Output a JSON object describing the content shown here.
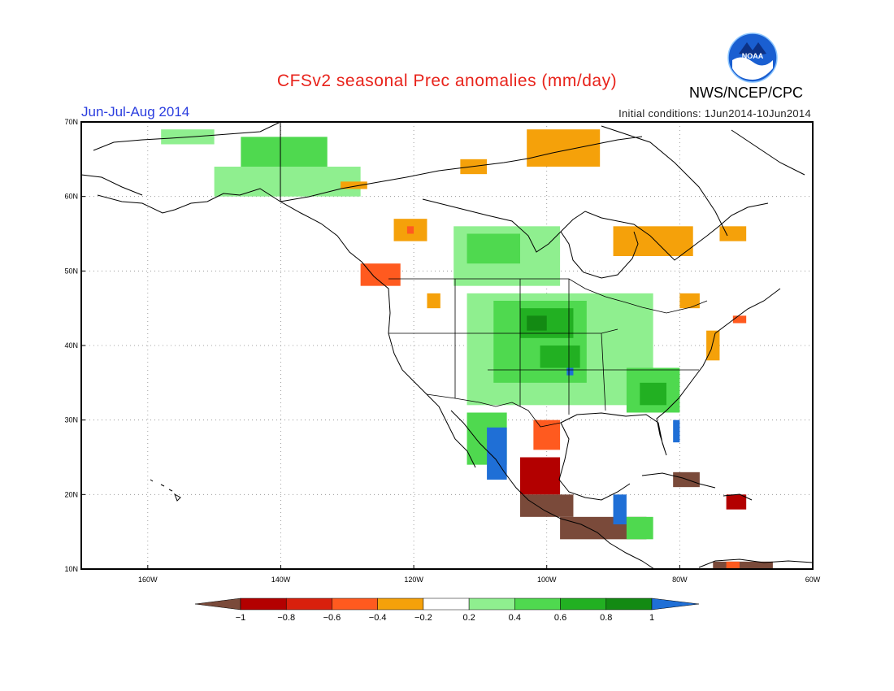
{
  "title": "CFSv2 seasonal Prec anomalies (mm/day)",
  "organization": "NWS/NCEP/CPC",
  "logo_text": "NOAA",
  "period": "Jun-Jul-Aug 2014",
  "initial_conditions": "Initial conditions: 1Jun2014-10Jun2014",
  "lat_ticks": [
    {
      "value": 70,
      "label": "70N"
    },
    {
      "value": 60,
      "label": "60N"
    },
    {
      "value": 50,
      "label": "50N"
    },
    {
      "value": 40,
      "label": "40N"
    },
    {
      "value": 30,
      "label": "30N"
    },
    {
      "value": 20,
      "label": "20N"
    },
    {
      "value": 10,
      "label": "10N"
    }
  ],
  "lon_ticks": [
    {
      "value": -160,
      "label": "160W"
    },
    {
      "value": -140,
      "label": "140W"
    },
    {
      "value": -120,
      "label": "120W"
    },
    {
      "value": -100,
      "label": "100W"
    },
    {
      "value": -80,
      "label": "80W"
    },
    {
      "value": -60,
      "label": "60W"
    }
  ],
  "extent": {
    "lon_min": -170,
    "lon_max": -60,
    "lat_min": 10,
    "lat_max": 70
  },
  "colorbar": {
    "labels": [
      "-1",
      "-0.8",
      "-0.6",
      "-0.4",
      "-0.2",
      "0.2",
      "0.4",
      "0.6",
      "0.8",
      "1"
    ],
    "colors": [
      "#7a4a3a",
      "#b30000",
      "#d9200d",
      "#ff5a1f",
      "#f5a10a",
      "#ffffff",
      "#8fef8f",
      "#4fd94f",
      "#22b022",
      "#138a13",
      "#1f6fd6"
    ]
  },
  "anomaly_regions": [
    {
      "category": "0.2 to 0.4",
      "color": "#8fef8f",
      "lon": [
        -158,
        -150
      ],
      "lat": [
        67,
        69
      ]
    },
    {
      "category": "0.4 to 0.6",
      "color": "#4fd94f",
      "lon": [
        -146,
        -133
      ],
      "lat": [
        63,
        68
      ]
    },
    {
      "category": "0.2 to 0.4",
      "color": "#8fef8f",
      "lon": [
        -150,
        -128
      ],
      "lat": [
        60,
        64
      ]
    },
    {
      "category": "-0.4 to -0.2",
      "color": "#f5a10a",
      "lon": [
        -131,
        -127
      ],
      "lat": [
        61,
        62
      ]
    },
    {
      "category": "-0.4 to -0.2",
      "color": "#f5a10a",
      "lon": [
        -123,
        -118
      ],
      "lat": [
        54,
        57
      ]
    },
    {
      "category": "-0.6 to -0.4",
      "color": "#ff5a1f",
      "lon": [
        -121,
        -120
      ],
      "lat": [
        55,
        56
      ]
    },
    {
      "category": "-0.4 to -0.2",
      "color": "#f5a10a",
      "lon": [
        -113,
        -109
      ],
      "lat": [
        63,
        65
      ]
    },
    {
      "category": "-0.4 to -0.2",
      "color": "#f5a10a",
      "lon": [
        -103,
        -92
      ],
      "lat": [
        64,
        69
      ]
    },
    {
      "category": "-0.4 to -0.2",
      "color": "#f5a10a",
      "lon": [
        -90,
        -78
      ],
      "lat": [
        52,
        56
      ]
    },
    {
      "category": "-0.4 to -0.2",
      "color": "#f5a10a",
      "lon": [
        -74,
        -70
      ],
      "lat": [
        54,
        56
      ]
    },
    {
      "category": "0.2 to 0.4",
      "color": "#8fef8f",
      "lon": [
        -114,
        -98
      ],
      "lat": [
        48,
        56
      ]
    },
    {
      "category": "0.4 to 0.6",
      "color": "#4fd94f",
      "lon": [
        -112,
        -104
      ],
      "lat": [
        51,
        55
      ]
    },
    {
      "category": "-0.6 to -0.4",
      "color": "#ff5a1f",
      "lon": [
        -128,
        -122
      ],
      "lat": [
        48,
        51
      ]
    },
    {
      "category": "-0.4 to -0.2",
      "color": "#f5a10a",
      "lon": [
        -118,
        -116
      ],
      "lat": [
        45,
        47
      ]
    },
    {
      "category": "0.2 to 0.4",
      "color": "#8fef8f",
      "lon": [
        -112,
        -84
      ],
      "lat": [
        32,
        47
      ]
    },
    {
      "category": "0.4 to 0.6",
      "color": "#4fd94f",
      "lon": [
        -108,
        -94
      ],
      "lat": [
        35,
        46
      ]
    },
    {
      "category": "0.6 to 0.8",
      "color": "#22b022",
      "lon": [
        -104,
        -96
      ],
      "lat": [
        41,
        45
      ]
    },
    {
      "category": "0.8 to 1",
      "color": "#138a13",
      "lon": [
        -103,
        -100
      ],
      "lat": [
        42,
        44
      ]
    },
    {
      "category": "0.6 to 0.8",
      "color": "#22b022",
      "lon": [
        -101,
        -95
      ],
      "lat": [
        37,
        40
      ]
    },
    {
      "category": "> 1",
      "color": "#1f6fd6",
      "lon": [
        -97,
        -96
      ],
      "lat": [
        36,
        37
      ]
    },
    {
      "category": "0.4 to 0.6",
      "color": "#4fd94f",
      "lon": [
        -88,
        -80
      ],
      "lat": [
        31,
        37
      ]
    },
    {
      "category": "0.6 to 0.8",
      "color": "#22b022",
      "lon": [
        -86,
        -82
      ],
      "lat": [
        32,
        35
      ]
    },
    {
      "category": "> 1",
      "color": "#1f6fd6",
      "lon": [
        -81,
        -80
      ],
      "lat": [
        27,
        30
      ]
    },
    {
      "category": "-0.4 to -0.2",
      "color": "#f5a10a",
      "lon": [
        -80,
        -77
      ],
      "lat": [
        45,
        47
      ]
    },
    {
      "category": "-0.6 to -0.4",
      "color": "#ff5a1f",
      "lon": [
        -72,
        -70
      ],
      "lat": [
        43,
        44
      ]
    },
    {
      "category": "-0.4 to -0.2",
      "color": "#f5a10a",
      "lon": [
        -76,
        -74
      ],
      "lat": [
        38,
        42
      ]
    },
    {
      "category": "0.4 to 0.6",
      "color": "#4fd94f",
      "lon": [
        -112,
        -106
      ],
      "lat": [
        24,
        31
      ]
    },
    {
      "category": "> 1",
      "color": "#1f6fd6",
      "lon": [
        -109,
        -106
      ],
      "lat": [
        22,
        29
      ]
    },
    {
      "category": "-0.6 to -0.4",
      "color": "#ff5a1f",
      "lon": [
        -102,
        -98
      ],
      "lat": [
        26,
        30
      ]
    },
    {
      "category": "-0.8 to -0.6",
      "color": "#b30000",
      "lon": [
        -104,
        -98
      ],
      "lat": [
        20,
        25
      ]
    },
    {
      "category": "< -1",
      "color": "#7a4a3a",
      "lon": [
        -104,
        -96
      ],
      "lat": [
        17,
        20
      ]
    },
    {
      "category": "< -1",
      "color": "#7a4a3a",
      "lon": [
        -98,
        -85
      ],
      "lat": [
        14,
        17
      ]
    },
    {
      "category": "> 1",
      "color": "#1f6fd6",
      "lon": [
        -90,
        -88
      ],
      "lat": [
        16,
        20
      ]
    },
    {
      "category": "0.4 to 0.6",
      "color": "#4fd94f",
      "lon": [
        -88,
        -84
      ],
      "lat": [
        14,
        17
      ]
    },
    {
      "category": "< -1",
      "color": "#7a4a3a",
      "lon": [
        -81,
        -77
      ],
      "lat": [
        21,
        23
      ]
    },
    {
      "category": "-0.8 to -0.6",
      "color": "#b30000",
      "lon": [
        -73,
        -70
      ],
      "lat": [
        18,
        20
      ]
    },
    {
      "category": "< -1",
      "color": "#7a4a3a",
      "lon": [
        -75,
        -66
      ],
      "lat": [
        10,
        11
      ]
    },
    {
      "category": "-0.6 to -0.4",
      "color": "#ff5a1f",
      "lon": [
        -73,
        -71
      ],
      "lat": [
        10,
        11
      ]
    }
  ]
}
